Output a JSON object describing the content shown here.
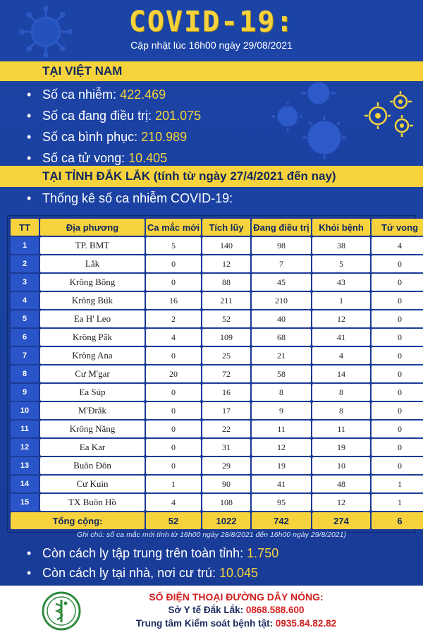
{
  "header": {
    "title": "COVID-19:",
    "updated": "Cập nhật lúc 16h00 ngày 29/08/2021"
  },
  "vietnam": {
    "heading": "TẠI VIỆT NAM",
    "stats": [
      {
        "label": "Số ca nhiễm: ",
        "value": "422.469"
      },
      {
        "label": "Số ca đang điều trị: ",
        "value": "201.075"
      },
      {
        "label": "Số ca bình phục: ",
        "value": "210.989"
      },
      {
        "label": "Số ca tử vong: ",
        "value": "10.405"
      }
    ]
  },
  "daklak": {
    "heading": "TẠI TỈNH ĐẮK LẮK (tính từ ngày 27/4/2021 đến nay)",
    "intro": "Thống kê số ca nhiễm COVID-19:"
  },
  "table": {
    "headers": [
      "TT",
      "Địa phương",
      "Ca mắc mới",
      "Tích lũy",
      "Đang điều trị",
      "Khỏi bệnh",
      "Tử vong"
    ],
    "rows": [
      [
        "1",
        "TP. BMT",
        "5",
        "140",
        "98",
        "38",
        "4"
      ],
      [
        "2",
        "Lắk",
        "0",
        "12",
        "7",
        "5",
        "0"
      ],
      [
        "3",
        "Krông Bông",
        "0",
        "88",
        "45",
        "43",
        "0"
      ],
      [
        "4",
        "Krông Búk",
        "16",
        "211",
        "210",
        "1",
        "0"
      ],
      [
        "5",
        "Ea H' Leo",
        "2",
        "52",
        "40",
        "12",
        "0"
      ],
      [
        "6",
        "Krông Pắk",
        "4",
        "109",
        "68",
        "41",
        "0"
      ],
      [
        "7",
        "Krông Ana",
        "0",
        "25",
        "21",
        "4",
        "0"
      ],
      [
        "8",
        "Cư M'gar",
        "20",
        "72",
        "58",
        "14",
        "0"
      ],
      [
        "9",
        "Ea Súp",
        "0",
        "16",
        "8",
        "8",
        "0"
      ],
      [
        "10",
        "M'Đrắk",
        "0",
        "17",
        "9",
        "8",
        "0"
      ],
      [
        "11",
        "Krông Năng",
        "0",
        "22",
        "11",
        "11",
        "0"
      ],
      [
        "12",
        "Ea Kar",
        "0",
        "31",
        "12",
        "19",
        "0"
      ],
      [
        "13",
        "Buôn Đôn",
        "0",
        "29",
        "19",
        "10",
        "0"
      ],
      [
        "14",
        "Cư Kuin",
        "1",
        "90",
        "41",
        "48",
        "1"
      ],
      [
        "15",
        "TX Buôn Hồ",
        "4",
        "108",
        "95",
        "12",
        "1"
      ]
    ],
    "total": [
      "Tổng cộng:",
      "52",
      "1022",
      "742",
      "274",
      "6"
    ]
  },
  "footnote": "Ghi chú: số ca mắc mới tính từ 16h00 ngày 28/8/2021 đến 16h00 ngày 29/8/2021)",
  "isolation": [
    {
      "label": "Còn cách ly tập trung trên toàn tỉnh: ",
      "value": "1.750"
    },
    {
      "label": "Còn cách ly tại nhà, nơi cư trú: ",
      "value": "10.045"
    }
  ],
  "hotline": {
    "title": "SỐ ĐIỆN THOẠI ĐƯỜNG DÂY NÓNG:",
    "line1_label": "Sở Y tế Đắk Lắk: ",
    "line1_number": "0868.588.600",
    "line2_label": "Trung tâm Kiểm soát bệnh tật: ",
    "line2_number": "0935.84.82.82"
  },
  "bullet": "•",
  "colors": {
    "accent": "#f6d33c",
    "background": "#1a3f9e",
    "hotline": "#d11f1f"
  },
  "icons": [
    "virus-icon",
    "health-department-logo"
  ]
}
